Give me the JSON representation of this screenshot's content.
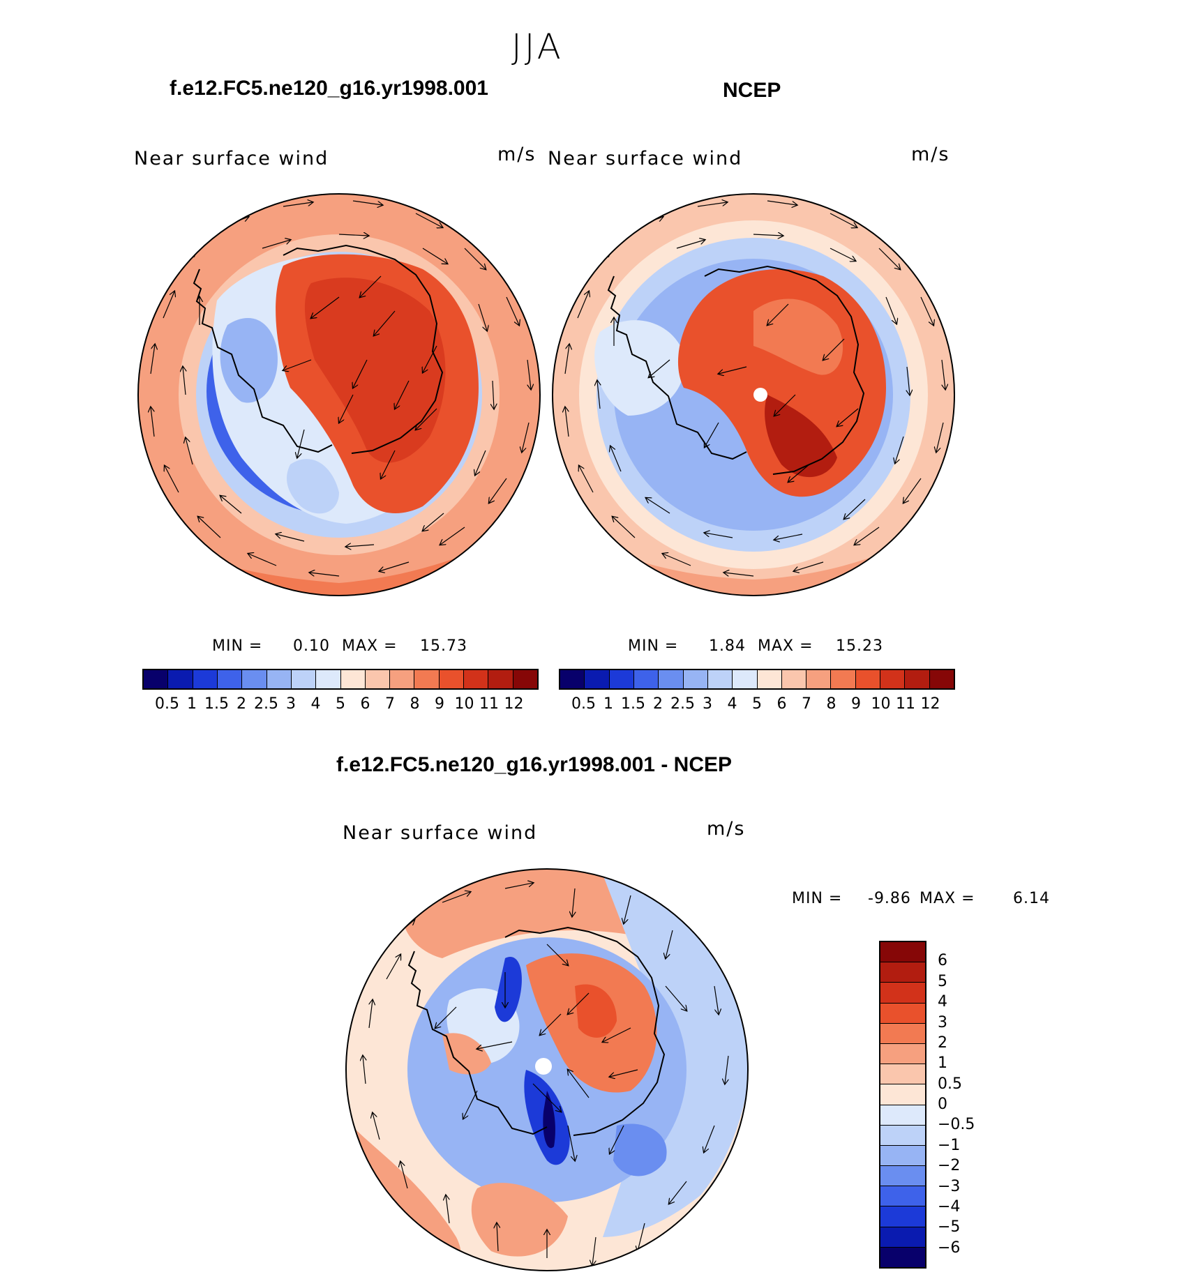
{
  "page": {
    "season": "JJA"
  },
  "panels": {
    "model": {
      "case_title": "f.e12.FC5.ne120_g16.yr1998.001",
      "variable": "Near surface wind",
      "units": "m/s",
      "min_label": "MIN =",
      "min_value": "0.10",
      "max_label": "MAX =",
      "max_value": "15.73"
    },
    "obs": {
      "case_title": "NCEP",
      "variable": "Near surface wind",
      "units": "m/s",
      "min_label": "MIN =",
      "min_value": "1.84",
      "max_label": "MAX =",
      "max_value": "15.23"
    },
    "diff": {
      "case_title": "f.e12.FC5.ne120_g16.yr1998.001 - NCEP",
      "variable": "Near surface wind",
      "units": "m/s",
      "min_label": "MIN =",
      "min_value": "-9.86",
      "max_label": "MAX =",
      "max_value": "6.14"
    }
  },
  "colorbars": {
    "abs": {
      "levels": [
        "0.5",
        "1",
        "1.5",
        "2",
        "2.5",
        "3",
        "4",
        "5",
        "6",
        "7",
        "8",
        "9",
        "10",
        "11",
        "12"
      ],
      "colors": [
        "#08006b",
        "#0a1bb0",
        "#1c3ad8",
        "#3e62ea",
        "#6a8ef0",
        "#97b4f4",
        "#bdd2f8",
        "#dde9fb",
        "#fde6d6",
        "#fac6ad",
        "#f6a07f",
        "#f27a52",
        "#e9512c",
        "#d2321a",
        "#b21d10",
        "#860707"
      ]
    },
    "diff": {
      "levels": [
        "6",
        "5",
        "4",
        "3",
        "2",
        "1",
        "0.5",
        "0",
        "−0.5",
        "−1",
        "−2",
        "−3",
        "−4",
        "−5",
        "−6"
      ],
      "colors": [
        "#860707",
        "#b21d10",
        "#d2321a",
        "#e9512c",
        "#f27a52",
        "#f6a07f",
        "#fac6ad",
        "#fde6d6",
        "#dde9fb",
        "#bdd2f8",
        "#97b4f4",
        "#6a8ef0",
        "#3e62ea",
        "#1c3ad8",
        "#0a1bb0",
        "#08006b"
      ]
    }
  }
}
